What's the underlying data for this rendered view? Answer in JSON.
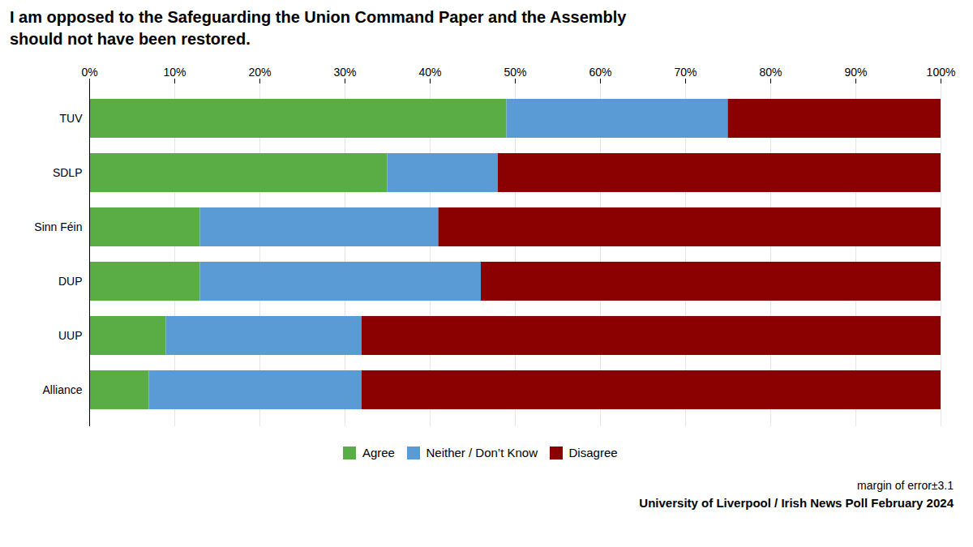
{
  "chart_data": {
    "type": "bar",
    "orientation": "horizontal",
    "stacked": true,
    "title": "I am opposed to the Safeguarding the Union Command Paper and the Assembly\nshould not have been restored.",
    "categories": [
      "TUV",
      "SDLP",
      "Sinn Féin",
      "DUP",
      "UUP",
      "Alliance"
    ],
    "series": [
      {
        "name": "Agree",
        "color": "#5aac44",
        "values": [
          49,
          35,
          13,
          13,
          9,
          7
        ]
      },
      {
        "name": "Neither / Don’t Know",
        "color": "#5b9bd5",
        "values": [
          26,
          13,
          28,
          33,
          23,
          25
        ]
      },
      {
        "name": "Disagree",
        "color": "#8b0000",
        "values": [
          25,
          52,
          59,
          54,
          68,
          68
        ]
      }
    ],
    "xlim": [
      0,
      100
    ],
    "xticks": [
      {
        "value": 0,
        "label": "0%"
      },
      {
        "value": 10,
        "label": "10%"
      },
      {
        "value": 20,
        "label": "20%"
      },
      {
        "value": 30,
        "label": "30%"
      },
      {
        "value": 40,
        "label": "40%"
      },
      {
        "value": 50,
        "label": "50%"
      },
      {
        "value": 60,
        "label": "60%"
      },
      {
        "value": 70,
        "label": "70%"
      },
      {
        "value": 80,
        "label": "80%"
      },
      {
        "value": 90,
        "label": "90%"
      },
      {
        "value": 100,
        "label": "100%"
      }
    ],
    "grid": true,
    "legend": "bottom",
    "annotations": [
      "margin of error±3.1",
      "University of Liverpool / Irish News Poll February 2024"
    ]
  }
}
